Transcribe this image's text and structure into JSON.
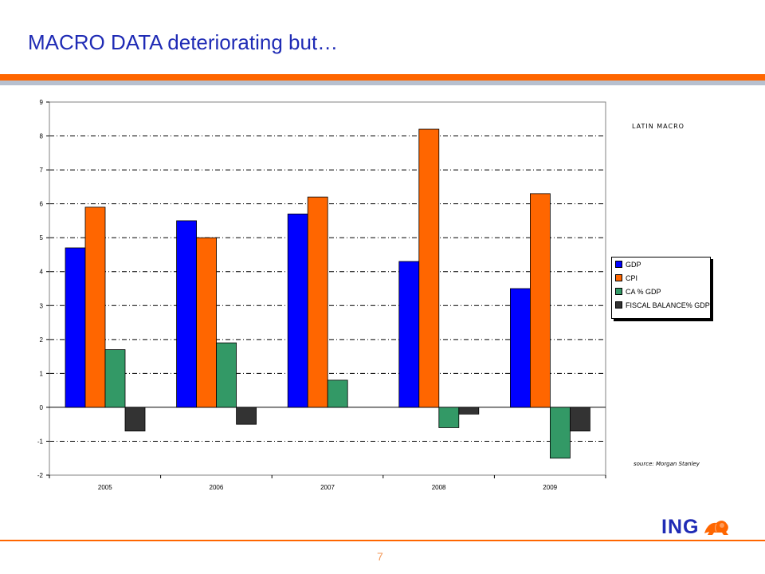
{
  "slide": {
    "title": "MACRO DATA deteriorating but…",
    "page_number": "7",
    "logo_text": "ING"
  },
  "chart_data": {
    "type": "bar",
    "title": "LATIN MACRO",
    "source": "source: Morgan Stanley",
    "categories": [
      "2005",
      "2006",
      "2007",
      "2008",
      "2009"
    ],
    "series": [
      {
        "name": "GDP",
        "color": "#0000ff",
        "values": [
          4.7,
          5.5,
          5.7,
          4.3,
          3.5
        ]
      },
      {
        "name": "CPI",
        "color": "#ff6600",
        "values": [
          5.9,
          5.0,
          6.2,
          8.2,
          6.3
        ]
      },
      {
        "name": "CA % GDP",
        "color": "#339966",
        "values": [
          1.7,
          1.9,
          0.8,
          -0.6,
          -1.5
        ]
      },
      {
        "name": "FISCAL BALANCE% GDP",
        "color": "#333333",
        "values": [
          -0.7,
          -0.5,
          null,
          -0.2,
          -0.7
        ]
      }
    ],
    "ylim": [
      -2,
      9
    ],
    "yticks": [
      -2,
      -1,
      0,
      1,
      2,
      3,
      4,
      5,
      6,
      7,
      8,
      9
    ],
    "grid": true,
    "legend": "right"
  }
}
